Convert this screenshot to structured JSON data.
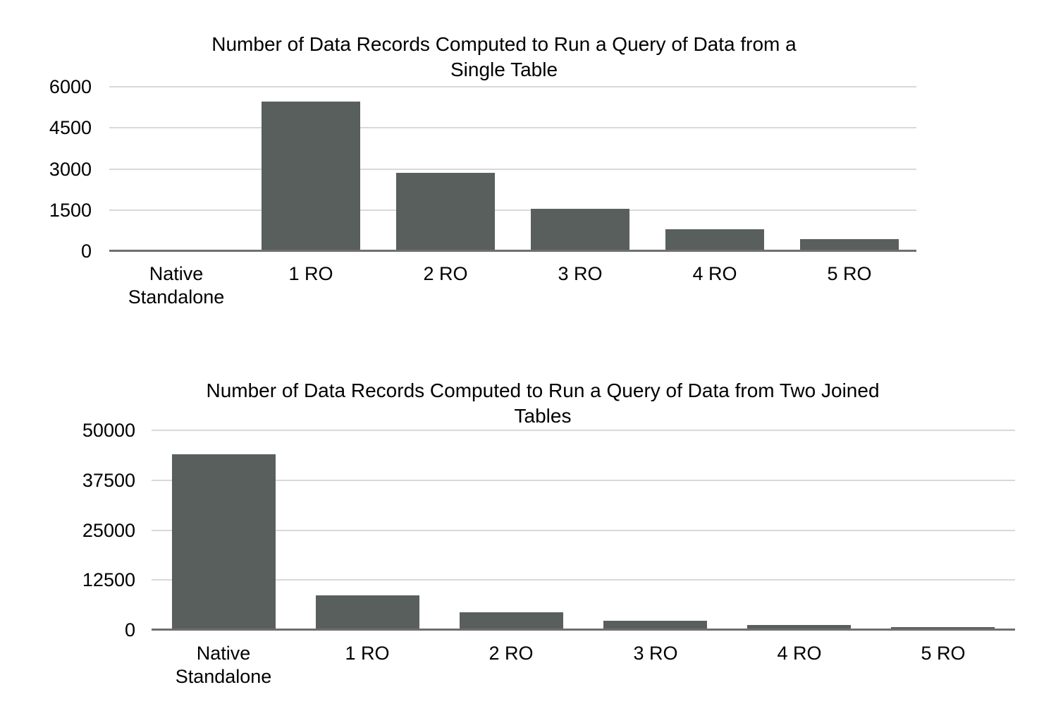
{
  "page": {
    "background": "#ffffff"
  },
  "styles": {
    "bar_color": "#595f5d",
    "gridline_color": "#d9d9d9",
    "axis_line_color": "#6f6f6f",
    "text_color": "#000000"
  },
  "chart_data": [
    {
      "type": "bar",
      "title": "Number of Data Records Computed to Run a Query of Data from a Single Table",
      "title_lines": [
        "Number of Data Records Computed to Run a Query of Data from a",
        "Single Table"
      ],
      "categories": [
        "Native Standalone",
        "1 RO",
        "2 RO",
        "3 RO",
        "4 RO",
        "5 RO"
      ],
      "values": [
        0,
        5460,
        2860,
        1550,
        800,
        430
      ],
      "xlabel": "",
      "ylabel": "",
      "ylim": [
        0,
        6000
      ],
      "yticks": [
        0,
        1500,
        3000,
        4500,
        6000
      ],
      "ytick_labels": [
        "0",
        "1500",
        "3000",
        "4500",
        "6000"
      ],
      "grid": true,
      "legend": false
    },
    {
      "type": "bar",
      "title": "Number of Data Records Computed to Run a Query of Data from Two Joined Tables",
      "title_lines": [
        "Number of Data Records Computed to Run a Query of Data from Two Joined",
        "Tables"
      ],
      "categories": [
        "Native Standalone",
        "1 RO",
        "2 RO",
        "3 RO",
        "4 RO",
        "5 RO"
      ],
      "values": [
        44000,
        8700,
        4500,
        2350,
        1300,
        760
      ],
      "xlabel": "",
      "ylabel": "",
      "ylim": [
        0,
        50000
      ],
      "yticks": [
        0,
        12500,
        25000,
        37500,
        50000
      ],
      "ytick_labels": [
        "0",
        "12500",
        "25000",
        "37500",
        "50000"
      ],
      "grid": true,
      "legend": false
    }
  ]
}
